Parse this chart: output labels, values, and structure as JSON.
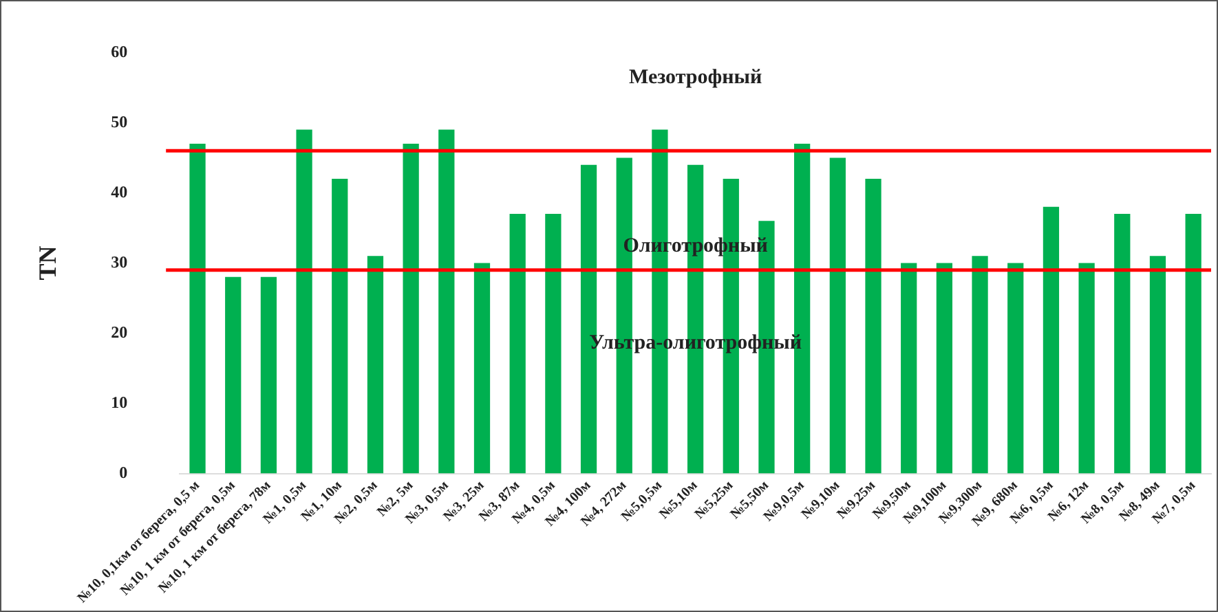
{
  "chart_data": {
    "type": "bar",
    "ylabel": "TN",
    "categories": [
      "№10, 0,1км от берега, 0,5 м",
      "№10, 1 км от берега, 0,5м",
      "№10, 1 км от берега, 78м",
      "№1, 0,5м",
      "№1, 10м",
      "№2, 0,5м",
      "№2, 5м",
      "№3, 0,5м",
      "№3, 25м",
      "№3, 87м",
      "№4, 0,5м",
      "№4, 100м",
      "№4, 272м",
      "№5,0,5м",
      "№5,10м",
      "№5,25м",
      "№5,50м",
      "№9,0,5м",
      "№9,10м",
      "№9,25м",
      "№9,50м",
      "№9,100м",
      "№9,300м",
      "№9, 680м",
      "№6, 0,5м",
      "№6, 12м",
      "№8, 0,5м",
      "№8, 49м",
      "№7, 0,5м"
    ],
    "values": [
      47,
      28,
      28,
      49,
      42,
      31,
      47,
      49,
      30,
      37,
      37,
      44,
      45,
      49,
      44,
      42,
      36,
      47,
      45,
      42,
      30,
      30,
      31,
      30,
      38,
      30,
      37,
      31,
      37
    ],
    "color": "#00b050",
    "ylim": [
      0,
      60
    ],
    "yticks": [
      0,
      10,
      20,
      30,
      40,
      50,
      60
    ],
    "ref_lines": [
      {
        "axis": "y",
        "value": 46,
        "color": "#ff0000"
      },
      {
        "axis": "y",
        "value": 29,
        "color": "#ff0000"
      }
    ],
    "annotations": [
      "Мезотрофный",
      "Олиготрофный",
      "Ультра-олиготрофный"
    ],
    "grid": false,
    "legend": false
  }
}
